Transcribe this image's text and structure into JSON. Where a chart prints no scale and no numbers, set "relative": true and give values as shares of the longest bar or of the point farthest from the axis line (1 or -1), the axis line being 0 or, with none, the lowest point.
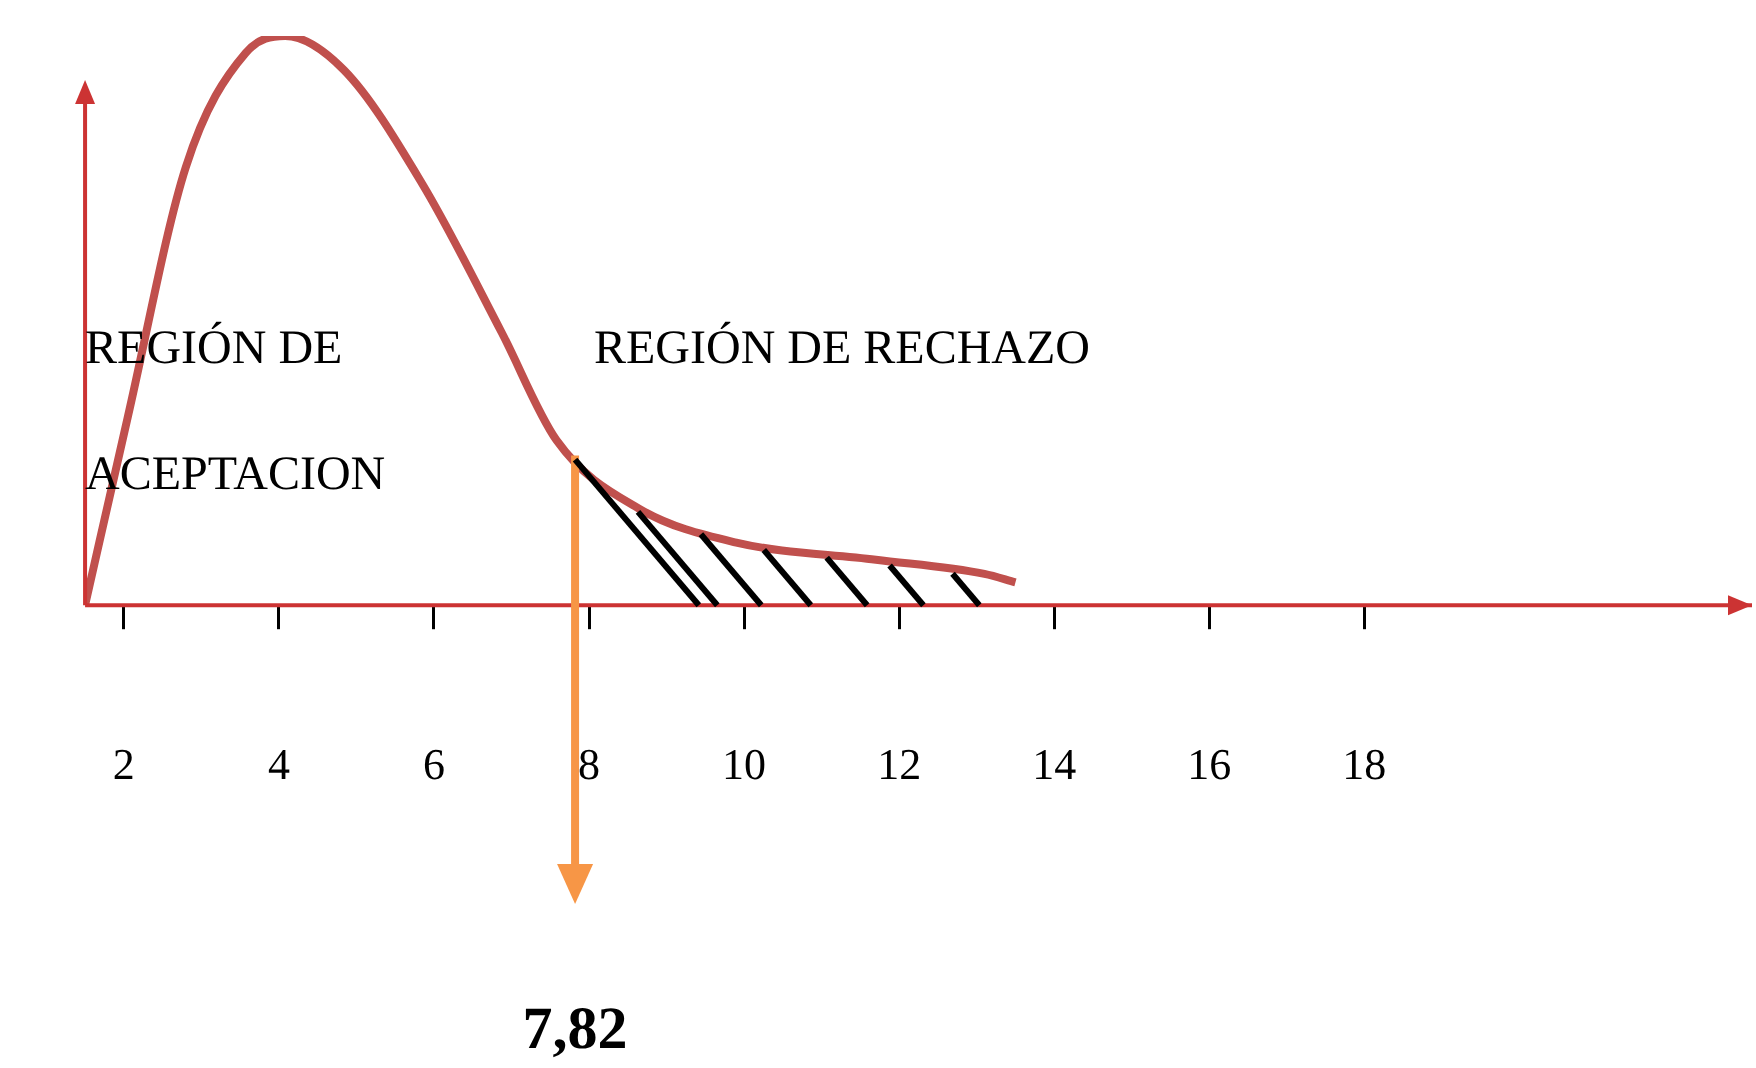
{
  "chart_data": {
    "type": "line",
    "relative": true,
    "x": [
      1.5,
      2.05,
      2.8,
      3.57,
      4.08,
      4.84,
      5.85,
      6.87,
      7.58,
      8.64,
      9.9,
      11.7,
      13.1,
      13.5
    ],
    "series": [
      {
        "color": "#c0504d",
        "values": [
          0,
          0.33,
          0.77,
          0.97,
          1,
          0.94,
          0.74,
          0.48,
          0.29,
          0.17,
          0.11,
          0.08,
          0.055,
          0.04
        ]
      }
    ],
    "xlim": [
      1.5,
      23
    ],
    "xticks": [
      2,
      4,
      6,
      8,
      10,
      12,
      14,
      16,
      18
    ],
    "marker": "none",
    "grid": false,
    "legend": false,
    "ref_lines": [
      {
        "axis": "x",
        "value": 7.82,
        "label": "7,82",
        "color": "#f79646"
      }
    ],
    "annotations": [
      "REGIÓN DE",
      "ACEPTACION",
      "REGIÓN DE RECHAZO"
    ]
  }
}
